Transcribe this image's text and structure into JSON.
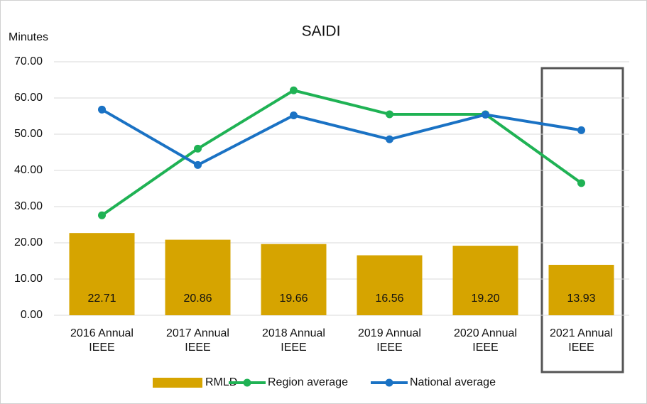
{
  "chart_data": {
    "type": "bar",
    "title": "SAIDI",
    "y_label": "Minutes",
    "categories": [
      "2016 Annual IEEE",
      "2017 Annual IEEE",
      "2018 Annual IEEE",
      "2019 Annual IEEE",
      "2020 Annual IEEE",
      "2021 Annual IEEE"
    ],
    "series": [
      {
        "name": "RMLD",
        "type": "bar",
        "color": "#d6a400",
        "values": [
          22.71,
          20.86,
          19.66,
          16.56,
          19.2,
          13.93
        ],
        "value_labels": [
          "22.71",
          "20.86",
          "19.66",
          "16.56",
          "19.20",
          "13.93"
        ]
      },
      {
        "name": "Region average",
        "type": "line",
        "color": "#1fb254",
        "values": [
          27.6,
          46.0,
          62.1,
          55.5,
          55.5,
          36.5
        ]
      },
      {
        "name": "National average",
        "type": "line",
        "color": "#1a72c4",
        "values": [
          56.8,
          41.5,
          55.2,
          48.6,
          55.4,
          51.1
        ]
      }
    ],
    "ylim": [
      0,
      70
    ],
    "yticks": [
      {
        "value": 0,
        "label": "0.00"
      },
      {
        "value": 10,
        "label": "10.00"
      },
      {
        "value": 20,
        "label": "20.00"
      },
      {
        "value": 30,
        "label": "30.00"
      },
      {
        "value": 40,
        "label": "40.00"
      },
      {
        "value": 50,
        "label": "50.00"
      },
      {
        "value": 60,
        "label": "60.00"
      },
      {
        "value": 70,
        "label": "70.00"
      }
    ],
    "grid": true,
    "legend": "bottom"
  }
}
